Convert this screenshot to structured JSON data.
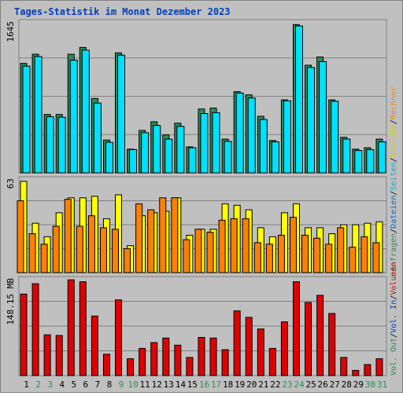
{
  "title": "Tages-Statistik im Monat Dezember 2023",
  "colors": {
    "frame_bg": "#c0c0c0",
    "panel_bg": "#c0c0c0",
    "title": "#0040c0",
    "anfragen": "#2e8b57",
    "dateien": "#00e0ff",
    "seiten": "#00e0ff",
    "besuche": "#ffff00",
    "rechner": "#ff8000",
    "volumen": "#e00000",
    "weekday": "#000000",
    "weekend": "#2e8b57"
  },
  "chart_data": [
    {
      "type": "bar",
      "name": "hits-files",
      "ymax_label": "1645",
      "ymax": 1645,
      "categories": [
        "1",
        "2",
        "3",
        "4",
        "5",
        "6",
        "7",
        "8",
        "9",
        "10",
        "11",
        "12",
        "13",
        "14",
        "15",
        "16",
        "17",
        "18",
        "19",
        "20",
        "21",
        "22",
        "23",
        "24",
        "25",
        "26",
        "27",
        "28",
        "29",
        "30",
        "31"
      ],
      "series": [
        {
          "name": "Anfragen",
          "values": [
            1200,
            1300,
            640,
            640,
            1300,
            1375,
            815,
            360,
            1315,
            260,
            465,
            560,
            415,
            545,
            285,
            700,
            710,
            370,
            890,
            855,
            620,
            355,
            800,
            1625,
            1180,
            1270,
            800,
            390,
            260,
            275,
            370
          ]
        },
        {
          "name": "Dateien",
          "values": [
            1170,
            1275,
            615,
            610,
            1235,
            1345,
            765,
            335,
            1290,
            255,
            440,
            520,
            370,
            510,
            275,
            650,
            660,
            345,
            875,
            820,
            585,
            340,
            790,
            1610,
            1155,
            1220,
            785,
            370,
            245,
            255,
            340
          ]
        }
      ],
      "side_labels": [
        "Dateien",
        "Anfragen"
      ]
    },
    {
      "type": "bar",
      "name": "visits-sites",
      "ymax_label": "63",
      "ymax": 63,
      "categories": [
        "1",
        "2",
        "3",
        "4",
        "5",
        "6",
        "7",
        "8",
        "9",
        "10",
        "11",
        "12",
        "13",
        "14",
        "15",
        "16",
        "17",
        "18",
        "19",
        "20",
        "21",
        "22",
        "23",
        "24",
        "25",
        "26",
        "27",
        "28",
        "29",
        "30",
        "31"
      ],
      "series": [
        {
          "name": "Seiten",
          "values": [
            0,
            0,
            0,
            0,
            0,
            0,
            0,
            0,
            0,
            0,
            0,
            0,
            0,
            0,
            0,
            0,
            0,
            0,
            0,
            0,
            0,
            0,
            0,
            0,
            0,
            0,
            0,
            0,
            0,
            0,
            0
          ]
        },
        {
          "name": "Besuche",
          "values": [
            61,
            33,
            24,
            40,
            50,
            50,
            51,
            36,
            52,
            18,
            38,
            40,
            41,
            50,
            25,
            29,
            29,
            46,
            45,
            42,
            30,
            24,
            40,
            46,
            30,
            30,
            26,
            32,
            32,
            33,
            34
          ]
        },
        {
          "name": "Rechner",
          "values": [
            48,
            26,
            19,
            31,
            49,
            31,
            38,
            30,
            29,
            16,
            46,
            42,
            50,
            50,
            22,
            29,
            27,
            35,
            36,
            36,
            20,
            19,
            25,
            37,
            25,
            23,
            19,
            30,
            17,
            24,
            20
          ]
        }
      ],
      "side_labels": [
        "Seiten",
        "Besuche",
        "Rechner"
      ]
    },
    {
      "type": "bar",
      "name": "volume",
      "ymax_label": "148.15 MB",
      "ymax": 148.15,
      "categories": [
        "1",
        "2",
        "3",
        "4",
        "5",
        "6",
        "7",
        "8",
        "9",
        "10",
        "11",
        "12",
        "13",
        "14",
        "15",
        "16",
        "17",
        "18",
        "19",
        "20",
        "21",
        "22",
        "23",
        "24",
        "25",
        "26",
        "27",
        "28",
        "29",
        "30",
        "31"
      ],
      "series": [
        {
          "name": "Volumen",
          "values": [
            126,
            142,
            63,
            62,
            148,
            145,
            92,
            33,
            117,
            26,
            42,
            51,
            58,
            47,
            28,
            59,
            58,
            40,
            100,
            90,
            72,
            42,
            83,
            145,
            113,
            124,
            96,
            28,
            8,
            17,
            26
          ]
        }
      ],
      "side_labels": [
        "Volumen",
        "Vol. In",
        "Vol. Out"
      ]
    }
  ],
  "x_axis": {
    "days": [
      "1",
      "2",
      "3",
      "4",
      "5",
      "6",
      "7",
      "8",
      "9",
      "10",
      "11",
      "12",
      "13",
      "14",
      "15",
      "16",
      "17",
      "18",
      "19",
      "20",
      "21",
      "22",
      "23",
      "24",
      "25",
      "26",
      "27",
      "28",
      "29",
      "30",
      "31"
    ],
    "weekend_days": [
      "2",
      "3",
      "9",
      "10",
      "16",
      "17",
      "23",
      "24",
      "30",
      "31"
    ]
  },
  "right_legend": {
    "top": [
      {
        "text": "Anfragen",
        "color": "#2e8b57"
      },
      {
        "text": "/",
        "color": "#000000"
      },
      {
        "text": "Dateien",
        "color": "#0070c0"
      },
      {
        "text": "/",
        "color": "#000000"
      },
      {
        "text": "Seiten",
        "color": "#00b0e0"
      },
      {
        "text": "/",
        "color": "#000000"
      },
      {
        "text": "Besuche",
        "color": "#d4d400"
      },
      {
        "text": "/",
        "color": "#000000"
      },
      {
        "text": "Rechner",
        "color": "#ff8000"
      }
    ],
    "bottom": [
      {
        "text": "Vol. Out",
        "color": "#2e8b57"
      },
      {
        "text": "/",
        "color": "#000000"
      },
      {
        "text": "Vol. In",
        "color": "#0040c0"
      },
      {
        "text": "/",
        "color": "#000000"
      },
      {
        "text": "Volumen",
        "color": "#e00000"
      }
    ]
  }
}
